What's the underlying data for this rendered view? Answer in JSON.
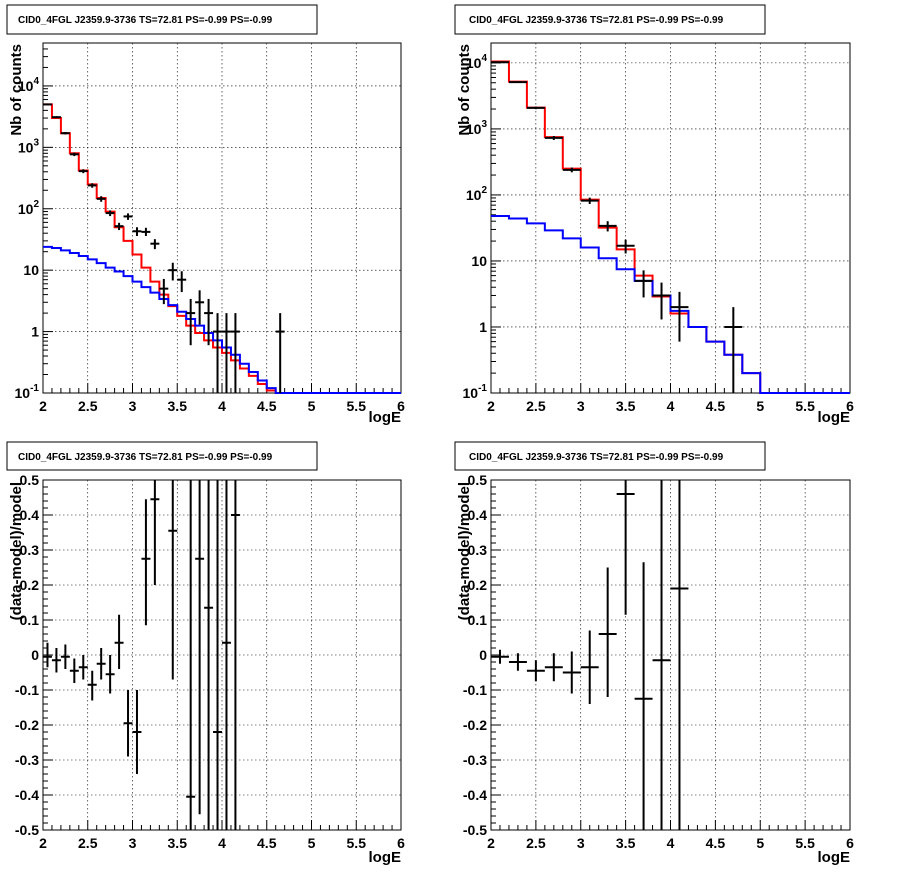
{
  "chart_data": [
    {
      "type": "histogram",
      "panel": "top-left",
      "title": "CID0_4FGL J2359.9-3736 TS=72.81 PS=-0.99 PS=-0.99",
      "xlabel": "logE",
      "ylabel": "Nb of counts",
      "xlim": [
        2,
        6
      ],
      "ylim": [
        0.1,
        50000
      ],
      "yscale": "log",
      "grid": true,
      "x_ticks": [
        "2",
        "2.5",
        "3",
        "3.5",
        "4",
        "4.5",
        "5",
        "5.5",
        "6"
      ],
      "y_ticks": [
        {
          "value": 0.1,
          "base": "10",
          "exp": "-1"
        },
        {
          "value": 1,
          "label": "1"
        },
        {
          "value": 10,
          "label": "10"
        },
        {
          "value": 100,
          "base": "10",
          "exp": "2"
        },
        {
          "value": 1000,
          "base": "10",
          "exp": "3"
        },
        {
          "value": 10000,
          "base": "10",
          "exp": "4"
        }
      ],
      "bin_edges": [
        2.0,
        2.1,
        2.2,
        2.3,
        2.4,
        2.5,
        2.6,
        2.7,
        2.8,
        2.9,
        3.0,
        3.1,
        3.2,
        3.3,
        3.4,
        3.5,
        3.6,
        3.7,
        3.8,
        3.9,
        4.0,
        4.1,
        4.2,
        4.3,
        4.4,
        4.5,
        4.6,
        4.7,
        4.8,
        4.9,
        5.0,
        5.1,
        5.2,
        5.3,
        5.4,
        5.5,
        5.6,
        5.7,
        5.8,
        5.9,
        6.0
      ],
      "series": [
        {
          "kind": "step",
          "color": "#ff0000",
          "values": [
            5000,
            3000,
            1700,
            800,
            420,
            250,
            150,
            90,
            50,
            30,
            18,
            11,
            6.5,
            4.0,
            2.6,
            1.8,
            1.25,
            0.95,
            0.72,
            0.55,
            0.45,
            0.34,
            0.25,
            0.19,
            0.14,
            0.11,
            0.1,
            0.1,
            0.1,
            0.1,
            0.1,
            0.1,
            0.1,
            0.1,
            0.1,
            0.1,
            0.1,
            0.1,
            0.1,
            0.1
          ]
        },
        {
          "kind": "step",
          "color": "#0000ff",
          "values": [
            24,
            23,
            21,
            19,
            17,
            15,
            13,
            11,
            9.5,
            8.0,
            6.5,
            5.3,
            4.3,
            3.4,
            2.7,
            2.1,
            1.6,
            1.25,
            0.95,
            0.72,
            0.55,
            0.42,
            0.3,
            0.22,
            0.16,
            0.12,
            0.1,
            0.1,
            0.1,
            0.1,
            0.1,
            0.1,
            0.1,
            0.1,
            0.1,
            0.1,
            0.1,
            0.1,
            0.1,
            0.1
          ]
        },
        {
          "kind": "points",
          "color": "#000000",
          "points": [
            {
              "x": 2.05,
              "y": 5000,
              "lo": 4860,
              "hi": 5140
            },
            {
              "x": 2.15,
              "y": 3100,
              "lo": 2990,
              "hi": 3210
            },
            {
              "x": 2.25,
              "y": 1700,
              "lo": 1620,
              "hi": 1780
            },
            {
              "x": 2.35,
              "y": 770,
              "lo": 720,
              "hi": 820
            },
            {
              "x": 2.45,
              "y": 410,
              "lo": 380,
              "hi": 440
            },
            {
              "x": 2.55,
              "y": 240,
              "lo": 220,
              "hi": 260
            },
            {
              "x": 2.65,
              "y": 145,
              "lo": 130,
              "hi": 160
            },
            {
              "x": 2.75,
              "y": 85,
              "lo": 76,
              "hi": 94
            },
            {
              "x": 2.85,
              "y": 52,
              "lo": 45,
              "hi": 59
            },
            {
              "x": 2.95,
              "y": 75,
              "lo": 66,
              "hi": 84
            },
            {
              "x": 3.05,
              "y": 43,
              "lo": 36,
              "hi": 50
            },
            {
              "x": 3.15,
              "y": 42,
              "lo": 36,
              "hi": 49
            },
            {
              "x": 3.25,
              "y": 27,
              "lo": 22,
              "hi": 32
            },
            {
              "x": 3.35,
              "y": 5,
              "lo": 2.8,
              "hi": 7.2
            },
            {
              "x": 3.45,
              "y": 10,
              "lo": 6.8,
              "hi": 13.2
            },
            {
              "x": 3.55,
              "y": 7,
              "lo": 4.4,
              "hi": 9.6
            },
            {
              "x": 3.65,
              "y": 2,
              "lo": 0.6,
              "hi": 3.4
            },
            {
              "x": 3.75,
              "y": 3,
              "lo": 1.3,
              "hi": 4.7
            },
            {
              "x": 3.85,
              "y": 2,
              "lo": 0.6,
              "hi": 3.4
            },
            {
              "x": 3.95,
              "y": 1,
              "lo": 0.1,
              "hi": 2.0
            },
            {
              "x": 4.05,
              "y": 1,
              "lo": 0.1,
              "hi": 2.0
            },
            {
              "x": 4.15,
              "y": 1,
              "lo": 0.1,
              "hi": 2.0
            },
            {
              "x": 4.65,
              "y": 1,
              "lo": 0.1,
              "hi": 2.0
            }
          ]
        }
      ]
    },
    {
      "type": "histogram",
      "panel": "top-right",
      "title": "CID0_4FGL J2359.9-3736 TS=72.81 PS=-0.99 PS=-0.99",
      "xlabel": "logE",
      "ylabel": "Nb of counts",
      "xlim": [
        2,
        6
      ],
      "ylim": [
        0.1,
        20000
      ],
      "yscale": "log",
      "grid": true,
      "x_ticks": [
        "2",
        "2.5",
        "3",
        "3.5",
        "4",
        "4.5",
        "5",
        "5.5",
        "6"
      ],
      "y_ticks": [
        {
          "value": 0.1,
          "base": "10",
          "exp": "-1"
        },
        {
          "value": 1,
          "label": "1"
        },
        {
          "value": 10,
          "label": "10"
        },
        {
          "value": 100,
          "base": "10",
          "exp": "2"
        },
        {
          "value": 1000,
          "base": "10",
          "exp": "3"
        },
        {
          "value": 10000,
          "base": "10",
          "exp": "4"
        }
      ],
      "bin_edges": [
        2.0,
        2.2,
        2.4,
        2.6,
        2.8,
        3.0,
        3.2,
        3.4,
        3.6,
        3.8,
        4.0,
        4.2,
        4.4,
        4.6,
        4.8,
        5.0,
        5.2,
        5.4,
        5.6,
        5.8,
        6.0
      ],
      "series": [
        {
          "kind": "step",
          "color": "#ff0000",
          "values": [
            10500,
            5200,
            2100,
            750,
            250,
            85,
            32,
            15,
            6,
            2.9,
            1.6,
            1.0,
            0.6,
            0.38,
            0.2,
            0.1,
            0.1,
            0.1,
            0.1,
            0.1
          ]
        },
        {
          "kind": "step",
          "color": "#0000ff",
          "values": [
            48,
            44,
            37,
            29,
            22,
            16,
            11,
            7.5,
            5,
            3,
            1.75,
            1.0,
            0.6,
            0.38,
            0.2,
            0.1,
            0.1,
            0.1,
            0.1,
            0.1
          ]
        },
        {
          "kind": "points",
          "color": "#000000",
          "points": [
            {
              "x": 2.1,
              "y": 10200,
              "lo": 10000,
              "hi": 10400
            },
            {
              "x": 2.3,
              "y": 5100,
              "lo": 4960,
              "hi": 5240
            },
            {
              "x": 2.5,
              "y": 2080,
              "lo": 1990,
              "hi": 2170
            },
            {
              "x": 2.7,
              "y": 730,
              "lo": 680,
              "hi": 780
            },
            {
              "x": 2.9,
              "y": 240,
              "lo": 220,
              "hi": 260
            },
            {
              "x": 3.1,
              "y": 82,
              "lo": 73,
              "hi": 91
            },
            {
              "x": 3.3,
              "y": 34,
              "lo": 28,
              "hi": 40
            },
            {
              "x": 3.5,
              "y": 17,
              "lo": 13,
              "hi": 21
            },
            {
              "x": 3.7,
              "y": 5,
              "lo": 2.8,
              "hi": 7.2
            },
            {
              "x": 3.9,
              "y": 3,
              "lo": 1.3,
              "hi": 4.7
            },
            {
              "x": 4.1,
              "y": 2,
              "lo": 0.6,
              "hi": 3.4
            },
            {
              "x": 4.7,
              "y": 1,
              "lo": 0.1,
              "hi": 2.0
            }
          ]
        }
      ]
    },
    {
      "type": "scatter",
      "panel": "bottom-left",
      "title": "CID0_4FGL J2359.9-3736 TS=72.81 PS=-0.99 PS=-0.99",
      "xlabel": "logE",
      "ylabel": "(data-model)/model",
      "xlim": [
        2,
        6
      ],
      "ylim": [
        -0.5,
        0.5
      ],
      "yscale": "linear",
      "grid": true,
      "x_ticks": [
        "2",
        "2.5",
        "3",
        "3.5",
        "4",
        "4.5",
        "5",
        "5.5",
        "6"
      ],
      "y_ticks": [
        {
          "value": -0.5,
          "label": "-0.5"
        },
        {
          "value": -0.4,
          "label": "-0.4"
        },
        {
          "value": -0.3,
          "label": "-0.3"
        },
        {
          "value": -0.2,
          "label": "-0.2"
        },
        {
          "value": -0.1,
          "label": "-0.1"
        },
        {
          "value": 0,
          "label": "0"
        },
        {
          "value": 0.1,
          "label": "0.1"
        },
        {
          "value": 0.2,
          "label": "0.2"
        },
        {
          "value": 0.3,
          "label": "0.3"
        },
        {
          "value": 0.4,
          "label": "0.4"
        },
        {
          "value": 0.5,
          "label": "0.5"
        }
      ],
      "xerr": 0.05,
      "series": [
        {
          "kind": "points",
          "color": "#000000",
          "points": [
            {
              "x": 2.05,
              "y": -0.005,
              "lo": -0.035,
              "hi": 0.035
            },
            {
              "x": 2.15,
              "y": -0.015,
              "lo": -0.05,
              "hi": 0.02
            },
            {
              "x": 2.25,
              "y": -0.005,
              "lo": -0.04,
              "hi": 0.03
            },
            {
              "x": 2.35,
              "y": -0.045,
              "lo": -0.08,
              "hi": -0.01
            },
            {
              "x": 2.45,
              "y": -0.035,
              "lo": -0.07,
              "hi": 0.0
            },
            {
              "x": 2.55,
              "y": -0.085,
              "lo": -0.13,
              "hi": -0.045
            },
            {
              "x": 2.65,
              "y": -0.025,
              "lo": -0.07,
              "hi": 0.02
            },
            {
              "x": 2.75,
              "y": -0.055,
              "lo": -0.11,
              "hi": 0.0
            },
            {
              "x": 2.85,
              "y": 0.035,
              "lo": -0.04,
              "hi": 0.115
            },
            {
              "x": 2.95,
              "y": -0.195,
              "lo": -0.29,
              "hi": -0.1
            },
            {
              "x": 3.05,
              "y": -0.22,
              "lo": -0.34,
              "hi": -0.1
            },
            {
              "x": 3.15,
              "y": 0.275,
              "lo": 0.085,
              "hi": 0.445
            },
            {
              "x": 3.25,
              "y": 0.445,
              "lo": 0.2,
              "hi": 0.5
            },
            {
              "x": 3.45,
              "y": 0.355,
              "lo": -0.07,
              "hi": 0.5
            },
            {
              "x": 3.65,
              "y": -0.405,
              "lo": -0.5,
              "hi": 0.5
            },
            {
              "x": 3.75,
              "y": 0.275,
              "lo": -0.455,
              "hi": 0.5
            },
            {
              "x": 3.85,
              "y": 0.135,
              "lo": -0.5,
              "hi": 0.5
            },
            {
              "x": 3.95,
              "y": -0.22,
              "lo": -0.5,
              "hi": 0.5
            },
            {
              "x": 4.05,
              "y": 0.035,
              "lo": -0.5,
              "hi": 0.5
            },
            {
              "x": 4.15,
              "y": 0.4,
              "lo": -0.5,
              "hi": 0.5
            }
          ]
        }
      ]
    },
    {
      "type": "scatter",
      "panel": "bottom-right",
      "title": "CID0_4FGL J2359.9-3736 TS=72.81 PS=-0.99 PS=-0.99",
      "xlabel": "logE",
      "ylabel": "(data-model)/model",
      "xlim": [
        2,
        6
      ],
      "ylim": [
        -0.5,
        0.5
      ],
      "yscale": "linear",
      "grid": true,
      "x_ticks": [
        "2",
        "2.5",
        "3",
        "3.5",
        "4",
        "4.5",
        "5",
        "5.5",
        "6"
      ],
      "y_ticks": [
        {
          "value": -0.5,
          "label": "-0.5"
        },
        {
          "value": -0.4,
          "label": "-0.4"
        },
        {
          "value": -0.3,
          "label": "-0.3"
        },
        {
          "value": -0.2,
          "label": "-0.2"
        },
        {
          "value": -0.1,
          "label": "-0.1"
        },
        {
          "value": 0,
          "label": "0"
        },
        {
          "value": 0.1,
          "label": "0.1"
        },
        {
          "value": 0.2,
          "label": "0.2"
        },
        {
          "value": 0.3,
          "label": "0.3"
        },
        {
          "value": 0.4,
          "label": "0.4"
        },
        {
          "value": 0.5,
          "label": "0.5"
        }
      ],
      "xerr": 0.1,
      "series": [
        {
          "kind": "points",
          "color": "#000000",
          "points": [
            {
              "x": 2.1,
              "y": -0.005,
              "lo": -0.025,
              "hi": 0.015
            },
            {
              "x": 2.3,
              "y": -0.02,
              "lo": -0.045,
              "hi": 0.005
            },
            {
              "x": 2.5,
              "y": -0.045,
              "lo": -0.075,
              "hi": -0.015
            },
            {
              "x": 2.7,
              "y": -0.035,
              "lo": -0.075,
              "hi": 0.005
            },
            {
              "x": 2.9,
              "y": -0.05,
              "lo": -0.11,
              "hi": 0.01
            },
            {
              "x": 3.1,
              "y": -0.035,
              "lo": -0.14,
              "hi": 0.07
            },
            {
              "x": 3.3,
              "y": 0.06,
              "lo": -0.12,
              "hi": 0.25
            },
            {
              "x": 3.5,
              "y": 0.46,
              "lo": 0.115,
              "hi": 0.5
            },
            {
              "x": 3.7,
              "y": -0.125,
              "lo": -0.5,
              "hi": 0.265
            },
            {
              "x": 3.9,
              "y": -0.015,
              "lo": -0.5,
              "hi": 0.5
            },
            {
              "x": 4.1,
              "y": 0.19,
              "lo": -0.5,
              "hi": 0.5
            }
          ]
        }
      ]
    }
  ]
}
